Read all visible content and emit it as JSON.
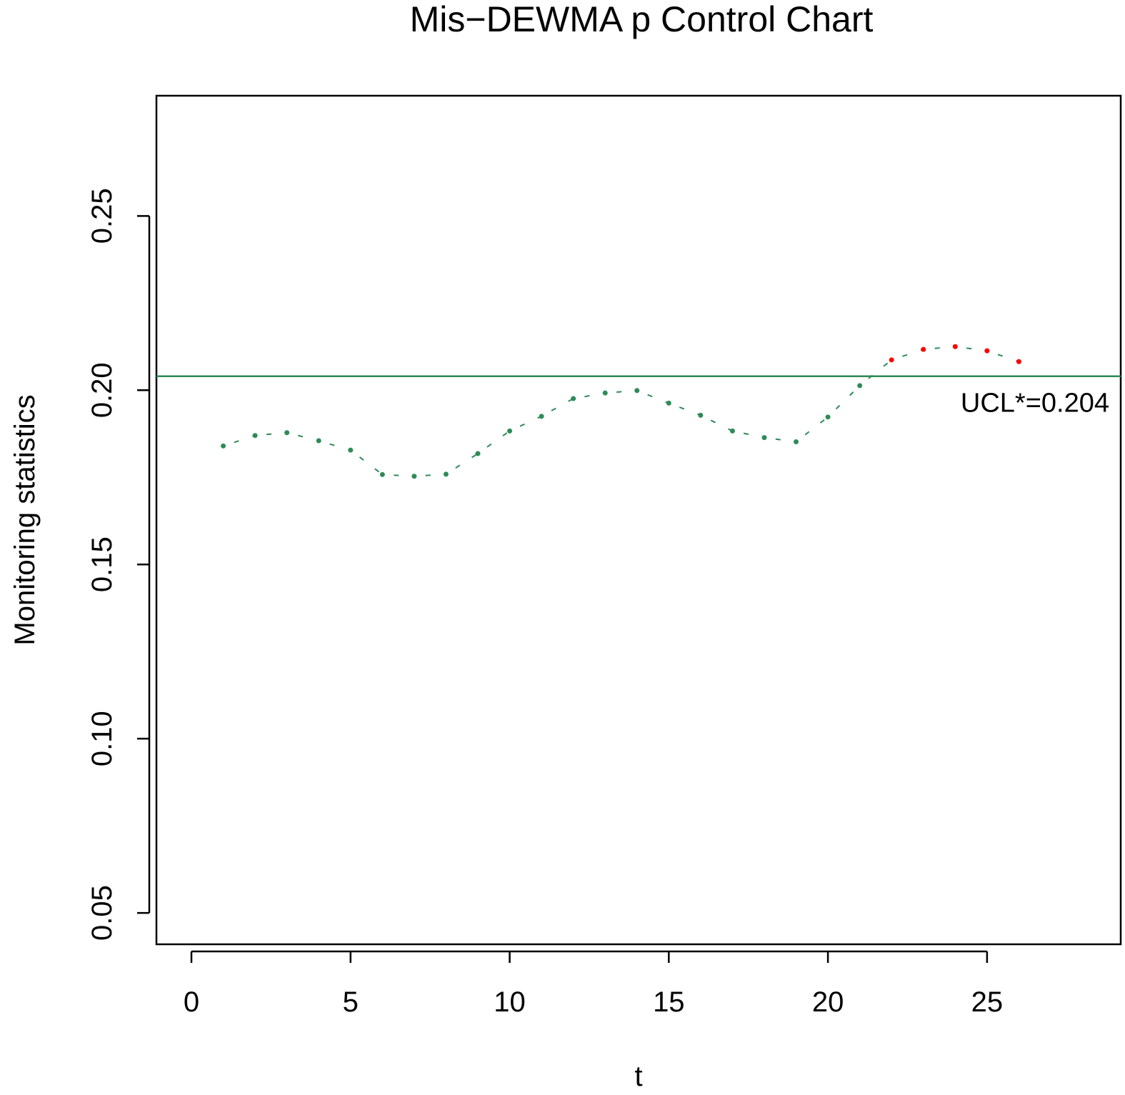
{
  "chart_data": {
    "type": "line",
    "title": "Mis−DEWMA p Control Chart",
    "xlabel": "t",
    "ylabel": "Monitoring statistics",
    "xlim": [
      -1.1,
      29.2
    ],
    "ylim": [
      0.041,
      0.2845
    ],
    "xticks": [
      0,
      5,
      10,
      15,
      20,
      25
    ],
    "xtick_labels": [
      "0",
      "5",
      "10",
      "15",
      "20",
      "25"
    ],
    "yticks": [
      0.05,
      0.1,
      0.15,
      0.2,
      0.25
    ],
    "ytick_labels": [
      "0.05",
      "0.10",
      "0.15",
      "0.20",
      "0.25"
    ],
    "grid": false,
    "line_style": "dashed",
    "colors": {
      "in_control": "#2e8b57",
      "out_of_control": "#ff0000",
      "limit": "#2e8b57",
      "axis": "#000000"
    },
    "series": [
      {
        "name": "Monitoring statistics",
        "x": [
          1,
          2,
          3,
          4,
          5,
          6,
          7,
          8,
          9,
          10,
          11,
          12,
          13,
          14,
          15,
          16,
          17,
          18,
          19,
          20,
          21,
          22,
          23,
          24,
          25,
          26
        ],
        "values": [
          0.184,
          0.187,
          0.1878,
          0.1855,
          0.1828,
          0.1758,
          0.1753,
          0.1759,
          0.1818,
          0.1883,
          0.1925,
          0.1976,
          0.1992,
          0.1999,
          0.1963,
          0.1928,
          0.1883,
          0.1864,
          0.1852,
          0.1923,
          0.2013,
          0.2087,
          0.2117,
          0.2125,
          0.2113,
          0.2082
        ]
      }
    ],
    "reference_lines": [
      {
        "name": "UCL",
        "value": 0.204,
        "label": "UCL*=0.204"
      }
    ]
  }
}
